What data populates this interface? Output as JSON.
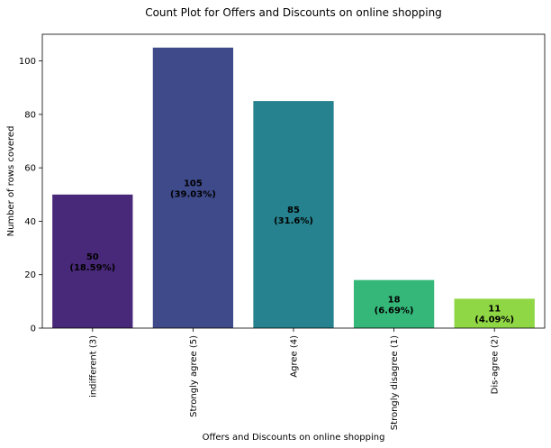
{
  "chart_data": {
    "type": "bar",
    "title": "Count Plot for Offers and Discounts on online shopping",
    "xlabel": "Offers and Discounts on online shopping",
    "ylabel": "Number of rows covered",
    "categories": [
      "indifferent (3)",
      "Strongly agree (5)",
      "Agree (4)",
      "Strongly disagree (1)",
      "Dis-agree (2)"
    ],
    "values": [
      50,
      105,
      85,
      18,
      11
    ],
    "percent_labels": [
      "(18.59%)",
      "(39.03%)",
      "(31.6%)",
      "(6.69%)",
      "(4.09%)"
    ],
    "colors": [
      "#482878",
      "#3e4a89",
      "#26828e",
      "#35b779",
      "#8fd744"
    ],
    "ylim": [
      0,
      110
    ],
    "yticks": [
      0,
      20,
      40,
      60,
      80,
      100
    ],
    "grid": false,
    "legend": "none"
  }
}
